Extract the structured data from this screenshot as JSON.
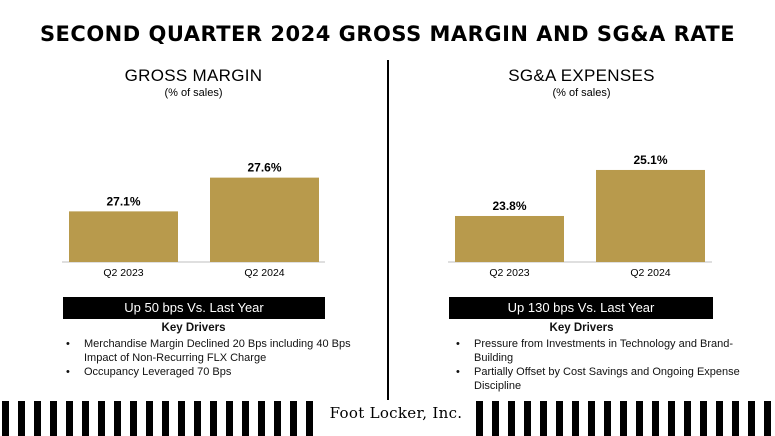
{
  "title": "SECOND QUARTER 2024 GROSS MARGIN AND SG&A RATE",
  "colors": {
    "bar": "#b89a4c",
    "axis": "#bfbfbf",
    "banner": "#000000",
    "text": "#000000"
  },
  "chart_data": [
    {
      "type": "bar",
      "title": "GROSS MARGIN",
      "subtitle": "(% of sales)",
      "categories": [
        "Q2 2023",
        "Q2 2024"
      ],
      "values": [
        27.1,
        27.6
      ],
      "value_labels": [
        "27.1%",
        "27.6%"
      ],
      "ylabel": "% of sales"
    },
    {
      "type": "bar",
      "title": "SG&A EXPENSES",
      "subtitle": "(% of sales)",
      "categories": [
        "Q2 2023",
        "Q2 2024"
      ],
      "values": [
        23.8,
        25.1
      ],
      "value_labels": [
        "23.8%",
        "25.1%"
      ],
      "ylabel": "% of sales"
    }
  ],
  "panels": {
    "left": {
      "banner": "Up 50 bps Vs. Last Year",
      "drivers_title": "Key Drivers",
      "drivers": [
        "Merchandise Margin Declined 20 Bps including 40 Bps Impact of Non-Recurring FLX Charge",
        "Occupancy Leveraged 70 Bps"
      ]
    },
    "right": {
      "banner": "Up 130 bps Vs. Last Year",
      "drivers_title": "Key Drivers",
      "drivers": [
        "Pressure from Investments in Technology and Brand-Building",
        "Partially Offset by Cost Savings and Ongoing Expense Discipline"
      ]
    }
  },
  "bullet": "•",
  "footer": {
    "logo": "Foot Locker, Inc."
  }
}
